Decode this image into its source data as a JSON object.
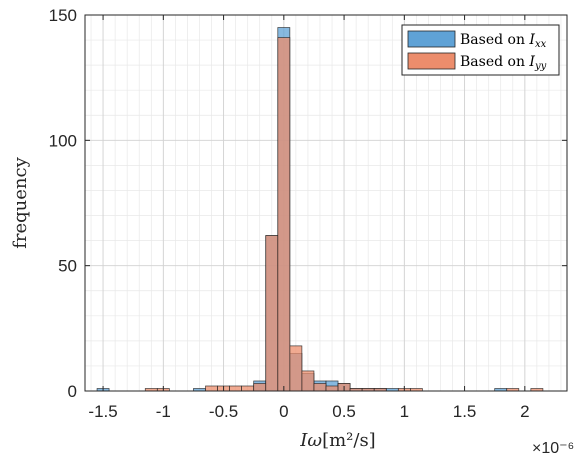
{
  "chart_data": {
    "type": "bar",
    "title": "",
    "ylabel": "frequency",
    "xlabel": {
      "symbol": "Iω",
      "unit": "[m²/s]"
    },
    "x_multiplier": "×10⁻⁶",
    "xlim": [
      -1.65,
      2.35
    ],
    "ylim": [
      0,
      150
    ],
    "xticks": [
      -1.5,
      -1,
      -0.5,
      0,
      0.5,
      1,
      1.5,
      2
    ],
    "xtick_labels": [
      "-1.5",
      "-1",
      "-0.5",
      "0",
      "0.5",
      "1",
      "1.5",
      "2"
    ],
    "yticks": [
      0,
      50,
      100,
      150
    ],
    "ytick_labels": [
      "0",
      "50",
      "100",
      "150"
    ],
    "grid": true,
    "minor_grid": true,
    "legend_placement": "top-right",
    "bin_width": 0.1,
    "series": [
      {
        "name": "Based on I_xx",
        "legend_main": "Based on ",
        "legend_sym": "I",
        "legend_sub": "xx",
        "color": "#5fa2d6",
        "bins": [
          {
            "x": -1.5,
            "y": 1
          },
          {
            "x": -0.7,
            "y": 1
          },
          {
            "x": -0.2,
            "y": 4
          },
          {
            "x": -0.1,
            "y": 62
          },
          {
            "x": 0.0,
            "y": 145
          },
          {
            "x": 0.1,
            "y": 15
          },
          {
            "x": 0.2,
            "y": 7
          },
          {
            "x": 0.3,
            "y": 4
          },
          {
            "x": 0.4,
            "y": 4
          },
          {
            "x": 0.5,
            "y": 3
          },
          {
            "x": 0.6,
            "y": 1
          },
          {
            "x": 0.7,
            "y": 1
          },
          {
            "x": 0.8,
            "y": 1
          },
          {
            "x": 0.9,
            "y": 1
          },
          {
            "x": 1.8,
            "y": 1
          }
        ]
      },
      {
        "name": "Based on I_yy",
        "legend_main": "Based on ",
        "legend_sym": "I",
        "legend_sub": "yy",
        "color": "#ec8d6c",
        "bins": [
          {
            "x": -1.1,
            "y": 1
          },
          {
            "x": -1.0,
            "y": 1
          },
          {
            "x": -0.6,
            "y": 2
          },
          {
            "x": -0.5,
            "y": 2
          },
          {
            "x": -0.4,
            "y": 2
          },
          {
            "x": -0.3,
            "y": 2
          },
          {
            "x": -0.2,
            "y": 3
          },
          {
            "x": -0.1,
            "y": 62
          },
          {
            "x": 0.0,
            "y": 141
          },
          {
            "x": 0.1,
            "y": 18
          },
          {
            "x": 0.2,
            "y": 8
          },
          {
            "x": 0.3,
            "y": 3
          },
          {
            "x": 0.4,
            "y": 2
          },
          {
            "x": 0.5,
            "y": 3
          },
          {
            "x": 0.6,
            "y": 1
          },
          {
            "x": 0.7,
            "y": 1
          },
          {
            "x": 0.8,
            "y": 1
          },
          {
            "x": 1.0,
            "y": 1
          },
          {
            "x": 1.1,
            "y": 1
          },
          {
            "x": 1.9,
            "y": 1
          },
          {
            "x": 2.1,
            "y": 1
          }
        ]
      }
    ]
  }
}
